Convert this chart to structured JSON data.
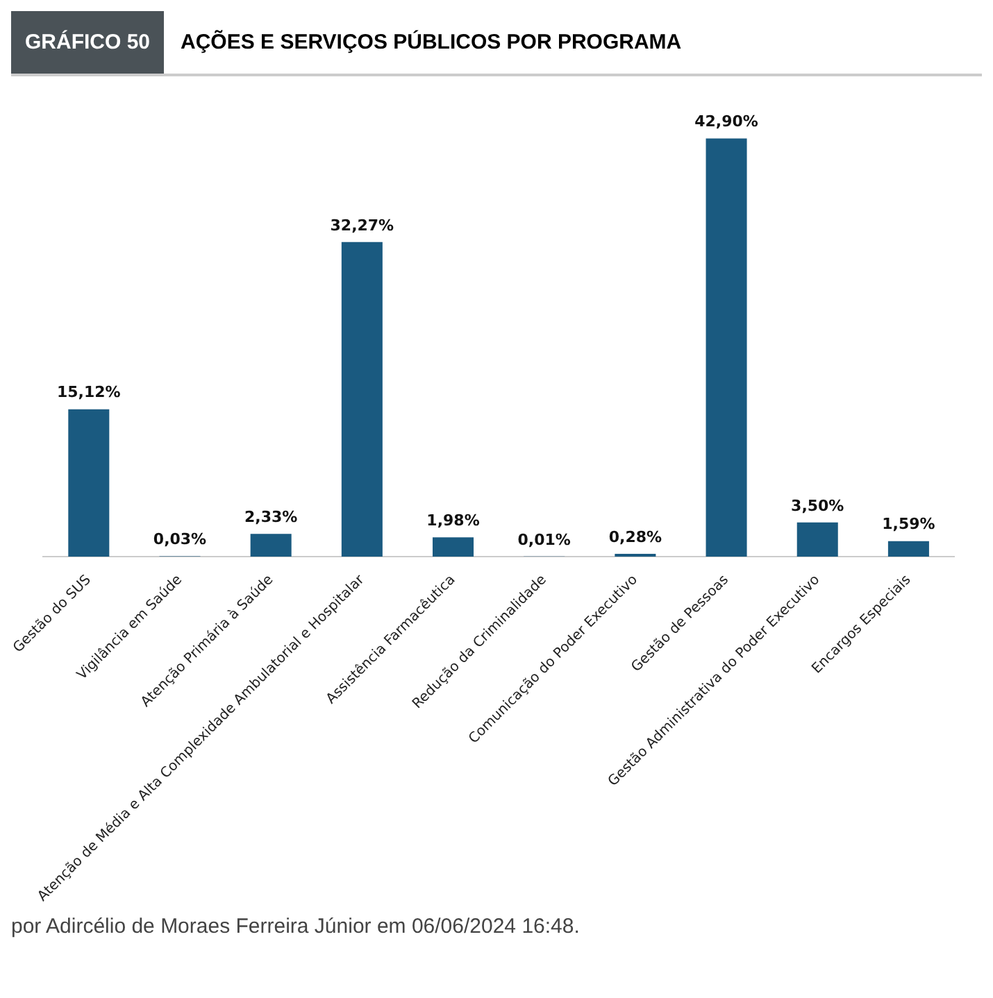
{
  "chart_data": {
    "type": "bar",
    "title": "AÇÕES E SERVIÇOS PÚBLICOS POR PROGRAMA",
    "subtitle": "GRÁFICO 50",
    "categories": [
      "Gestão do SUS",
      "Vigilância em Saúde",
      "Atenção Primária à Saúde",
      "Atenção de Média e Alta Complexidade Ambulatorial e Hospitalar",
      "Assistência Farmacêutica",
      "Redução da Criminalidade",
      "Comunicação do Poder Executivo",
      "Gestão de Pessoas",
      "Gestão Administrativa do Poder Executivo",
      "Encargos Especiais"
    ],
    "values": [
      15.12,
      0.03,
      2.33,
      32.27,
      1.98,
      0.01,
      0.28,
      42.9,
      3.5,
      1.59
    ],
    "value_labels": [
      "15,12%",
      "0,03%",
      "2,33%",
      "32,27%",
      "1,98%",
      "0,01%",
      "0,28%",
      "42,90%",
      "3,50%",
      "1,59%"
    ],
    "color": "#1a5a80",
    "annotations": [
      "por Adircélio de Moraes Ferreira Júnior em 06/06/2024 16:48."
    ]
  }
}
